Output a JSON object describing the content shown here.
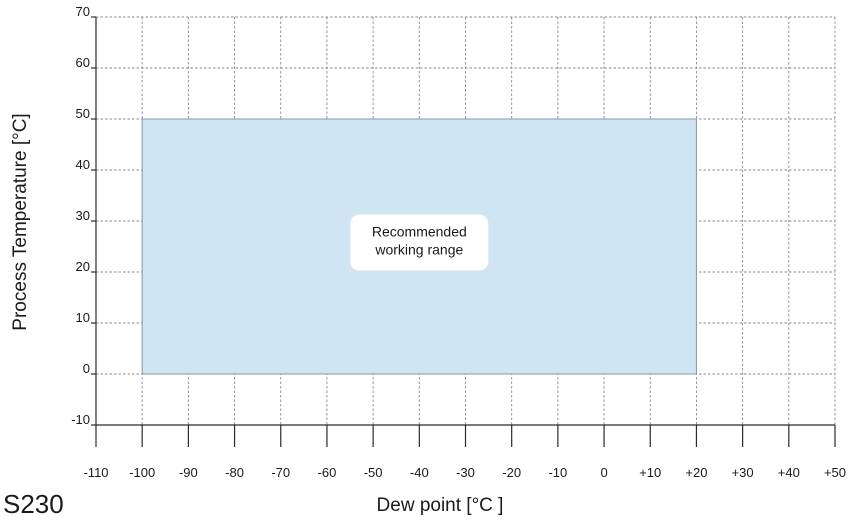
{
  "chart_data": {
    "type": "area",
    "model_label": "S230",
    "xlabel": "Dew point [°C ]",
    "ylabel": "Process Temperature [°C]",
    "xlim": [
      -110,
      50
    ],
    "ylim": [
      -10,
      70
    ],
    "x_ticks": [
      -110,
      -100,
      -90,
      -80,
      -70,
      -60,
      -50,
      -40,
      -30,
      -20,
      -10,
      0,
      10,
      20,
      30,
      40,
      50
    ],
    "x_tick_labels": [
      "-110",
      "-100",
      "-90",
      "-80",
      "-70",
      "-60",
      "-50",
      "-40",
      "-30",
      "-20",
      "-10",
      "0",
      "+10",
      "+20",
      "+30",
      "+40",
      "+50"
    ],
    "y_ticks": [
      -10,
      0,
      10,
      20,
      30,
      40,
      50,
      60,
      70
    ],
    "y_tick_labels": [
      "-10",
      "0",
      "10",
      "20",
      "30",
      "40",
      "50",
      "60",
      "70"
    ],
    "grid": true,
    "regions": [
      {
        "label_lines": [
          "Recommended",
          "working range"
        ],
        "x_range": [
          -100,
          20
        ],
        "y_range": [
          0,
          50
        ],
        "color": "#cfe5f3"
      }
    ]
  }
}
